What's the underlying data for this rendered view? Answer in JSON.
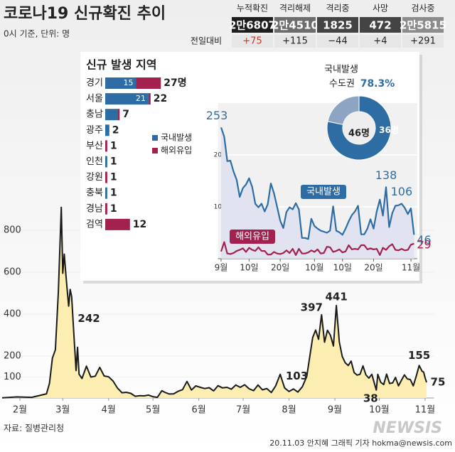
{
  "header": {
    "title": "코로나19 신규확진 추이",
    "subtitle": "0시 기준, 단위: 명"
  },
  "stats": {
    "change_label": "전일대비",
    "columns": [
      {
        "label": "누적확진",
        "value": "2만6807",
        "change": "+75"
      },
      {
        "label": "격리해제",
        "value": "2만4510",
        "change": "+115"
      },
      {
        "label": "격리중",
        "value": "1825",
        "change": "−44"
      },
      {
        "label": "사망",
        "value": "472",
        "change": "+4"
      },
      {
        "label": "검사중",
        "value": "2만5815",
        "change": "+291"
      }
    ]
  },
  "chart_data": [
    {
      "type": "area",
      "color": "#1a1a1a",
      "fill": "#fbeeb0",
      "x": [
        20,
        30,
        40,
        50,
        52,
        54,
        56,
        58,
        60,
        61,
        62,
        63,
        64,
        65,
        66,
        67,
        68,
        69,
        70,
        71,
        72,
        74,
        77,
        80,
        83,
        86,
        89,
        92,
        95,
        98,
        101,
        104,
        107,
        110,
        113,
        116,
        119,
        122,
        125,
        128,
        130,
        133,
        136,
        139,
        142,
        145,
        148,
        151,
        154,
        157,
        160,
        163,
        166,
        169,
        172,
        175,
        178,
        181,
        184,
        187,
        190,
        193,
        196,
        199,
        202,
        205,
        208,
        211,
        214,
        217,
        220,
        223,
        226,
        228,
        230,
        232,
        234,
        236,
        238,
        240,
        242,
        244,
        246,
        248,
        250,
        252,
        254,
        256,
        258,
        260,
        262,
        264,
        266,
        268,
        270,
        273,
        274,
        276,
        278,
        280,
        282,
        284,
        286,
        288,
        290,
        292,
        294,
        296,
        298,
        300,
        302,
        304,
        305,
        306,
        307
      ],
      "values": [
        1,
        5,
        3,
        20,
        70,
        190,
        230,
        500,
        909,
        595,
        686,
        600,
        516,
        438,
        518,
        483,
        367,
        248,
        131,
        242,
        114,
        93,
        152,
        100,
        104,
        146,
        105,
        101,
        81,
        47,
        25,
        27,
        22,
        8,
        11,
        10,
        14,
        6,
        3,
        35,
        27,
        19,
        20,
        32,
        40,
        79,
        38,
        58,
        51,
        45,
        49,
        34,
        59,
        48,
        51,
        42,
        62,
        51,
        63,
        44,
        35,
        62,
        39,
        45,
        26,
        58,
        113,
        48,
        31,
        43,
        28,
        54,
        103,
        197,
        288,
        324,
        280,
        397,
        266,
        323,
        299,
        248,
        441,
        267,
        198,
        168,
        155,
        176,
        121,
        109,
        113,
        153,
        110,
        95,
        113,
        38,
        113,
        75,
        64,
        114,
        69,
        72,
        98,
        58,
        84,
        110,
        91,
        88,
        58,
        103,
        155,
        127,
        124,
        97,
        75
      ],
      "xlim": [
        20,
        312
      ],
      "ylim": [
        0,
        950
      ],
      "yticks": [
        100,
        200,
        400,
        600,
        800
      ],
      "xticks": [
        {
          "value": 32,
          "label": "2월"
        },
        {
          "value": 61,
          "label": "3월"
        },
        {
          "value": 92,
          "label": "4월"
        },
        {
          "value": 122,
          "label": "5월"
        },
        {
          "value": 153,
          "label": "6월"
        },
        {
          "value": 183,
          "label": "7월"
        },
        {
          "value": 214,
          "label": "8월"
        },
        {
          "value": 245,
          "label": "9월"
        },
        {
          "value": 275,
          "label": "10월"
        },
        {
          "value": 306,
          "label": "11월"
        }
      ],
      "annotations": [
        {
          "x": 71,
          "value": 242
        },
        {
          "x": 236,
          "value": 397
        },
        {
          "x": 246,
          "value": 441
        },
        {
          "x": 226,
          "value": 103
        },
        {
          "x": 273,
          "value": 38
        },
        {
          "x": 302,
          "value": 155
        },
        {
          "x": 307,
          "value": 75
        }
      ]
    },
    {
      "type": "stacked-bar",
      "title": "신규 발생 지역",
      "categories": [
        "경기",
        "서울",
        "충남",
        "광주",
        "부산",
        "인천",
        "강원",
        "충북",
        "경남",
        "검역"
      ],
      "series": [
        {
          "name": "국내발생",
          "color": "#2e6da4",
          "values": [
            15,
            21,
            6,
            2,
            0,
            1,
            0,
            1,
            0,
            0
          ]
        },
        {
          "name": "해외유입",
          "color": "#a3214f",
          "values": [
            12,
            1,
            1,
            0,
            1,
            0,
            1,
            0,
            1,
            12
          ]
        }
      ],
      "total_labels": [
        "27명",
        "22",
        "7",
        "2",
        "1",
        "1",
        "1",
        "1",
        "1",
        "12"
      ],
      "xlim": [
        0,
        30
      ]
    },
    {
      "type": "pie",
      "title": "국내발생",
      "region_label": "수도권",
      "share_label": "78.3%",
      "center_label": "46명",
      "values": [
        36,
        10
      ],
      "value_labels": [
        "36명",
        null
      ],
      "colors": [
        "#2e6da4",
        "#8da5c2"
      ]
    },
    {
      "type": "line",
      "x": [
        245,
        246,
        247,
        248,
        249,
        250,
        251,
        252,
        253,
        254,
        255,
        256,
        257,
        258,
        259,
        260,
        261,
        262,
        263,
        264,
        265,
        266,
        267,
        268,
        269,
        270,
        271,
        272,
        273,
        274,
        275,
        276,
        277,
        278,
        279,
        280,
        281,
        282,
        283,
        284,
        285,
        286,
        287,
        288,
        289,
        290,
        291,
        292,
        293,
        294,
        295,
        296,
        297,
        298,
        299,
        300,
        301,
        302,
        303,
        304,
        305,
        306,
        307
      ],
      "series": [
        {
          "name": "국내발생",
          "color": "#2e6da4",
          "fill": "#e1e3f0",
          "values": [
            253,
            235,
            188,
            189,
            168,
            152,
            119,
            136,
            143,
            155,
            138,
            106,
            99,
            106,
            91,
            105,
            145,
            126,
            100,
            73,
            59,
            90,
            99,
            95,
            107,
            95,
            40,
            40,
            38,
            77,
            63,
            58,
            54,
            52,
            50,
            54,
            101,
            54,
            51,
            46,
            58,
            72,
            84,
            91,
            102,
            47,
            47,
            58,
            76,
            58,
            91,
            114,
            83,
            138,
            61,
            88,
            102,
            103,
            106,
            98,
            86,
            97,
            46
          ]
        },
        {
          "name": "해외유입",
          "color": "#a3214f",
          "values": [
            14,
            32,
            10,
            9,
            11,
            15,
            17,
            20,
            13,
            21,
            17,
            15,
            22,
            15,
            15,
            8,
            8,
            13,
            10,
            9,
            11,
            16,
            11,
            19,
            7,
            19,
            10,
            10,
            12,
            16,
            13,
            18,
            10,
            11,
            23,
            22,
            13,
            15,
            18,
            12,
            14,
            26,
            18,
            19,
            18,
            26,
            26,
            18,
            20,
            18,
            19,
            7,
            21,
            17,
            24,
            28,
            17,
            16,
            19,
            16,
            17,
            27,
            29
          ]
        }
      ],
      "xlim": [
        244,
        308
      ],
      "ylim": [
        0,
        300
      ],
      "yticks": [
        100,
        200
      ],
      "xticks": [
        {
          "value": 245,
          "label": "9월"
        },
        {
          "value": 254,
          "label": "10일"
        },
        {
          "value": 264,
          "label": "20일"
        },
        {
          "value": 275,
          "label": "10월"
        },
        {
          "value": 284,
          "label": "10일"
        },
        {
          "value": 294,
          "label": "20일"
        },
        {
          "value": 306,
          "label": "11월"
        }
      ],
      "annotations": [
        {
          "x": 245,
          "value": 253
        },
        {
          "x": 298,
          "value": 138
        },
        {
          "x": 303,
          "value": 106
        },
        {
          "x": 307,
          "value": 46
        },
        {
          "x": 307,
          "value": 29
        }
      ]
    }
  ],
  "footer": {
    "source": "자료: 질병관리청",
    "credit": "20.11.03 안지혜 그래픽 기자 hokma@newsis.com",
    "logo": "NEWSIS"
  }
}
